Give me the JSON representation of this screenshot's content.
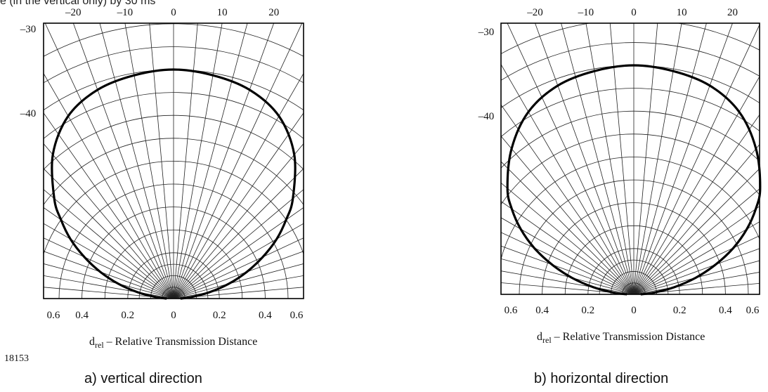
{
  "top_snippet": "e (in the vertical only) by 30 ms",
  "figure_id": "18153",
  "xlabel_main": "d",
  "xlabel_sub": "rel",
  "xlabel_rest": " – Relative Transmission Distance",
  "chart_data": [
    {
      "type": "polar-line",
      "caption": "a) vertical direction",
      "angle_ticks": [
        "–20",
        "–10",
        "0",
        "10",
        "20"
      ],
      "side_ticks": [
        "–30",
        "–40"
      ],
      "x_ticks": [
        "0.6",
        "0.4",
        "0.2",
        "0",
        "0.2",
        "0.4",
        "0.6"
      ],
      "angle_grid_step_deg": 5,
      "radius_grid": [
        0.05,
        0.1,
        0.15,
        0.2,
        0.3,
        0.4,
        0.5,
        0.6,
        0.7,
        0.8,
        0.9,
        1.0,
        1.1,
        1.2
      ],
      "series": [
        {
          "angles_deg": [
            0,
            10,
            20,
            30,
            40,
            50,
            55,
            60,
            65,
            70,
            75,
            80,
            85,
            90
          ],
          "distance_rel": [
            1.0,
            0.99,
            0.97,
            0.92,
            0.82,
            0.68,
            0.6,
            0.52,
            0.43,
            0.34,
            0.25,
            0.16,
            0.08,
            0.03
          ]
        }
      ]
    },
    {
      "type": "polar-line",
      "caption": "b) horizontal direction",
      "angle_ticks": [
        "–20",
        "–10",
        "0",
        "10",
        "20"
      ],
      "side_ticks": [
        "–30",
        "–40"
      ],
      "x_ticks": [
        "0.6",
        "0.4",
        "0.2",
        "0",
        "0.2",
        "0.4",
        "0.6"
      ],
      "angle_grid_step_deg": 5,
      "radius_grid": [
        0.05,
        0.1,
        0.15,
        0.2,
        0.3,
        0.4,
        0.5,
        0.6,
        0.7,
        0.8,
        0.9,
        1.0,
        1.1,
        1.2
      ],
      "series": [
        {
          "angles_deg": [
            0,
            10,
            20,
            30,
            40,
            50,
            55,
            60,
            65,
            70,
            75,
            80,
            85,
            90
          ],
          "distance_rel": [
            1.0,
            0.99,
            0.97,
            0.92,
            0.83,
            0.72,
            0.65,
            0.57,
            0.48,
            0.38,
            0.28,
            0.18,
            0.09,
            0.03
          ]
        }
      ]
    }
  ]
}
